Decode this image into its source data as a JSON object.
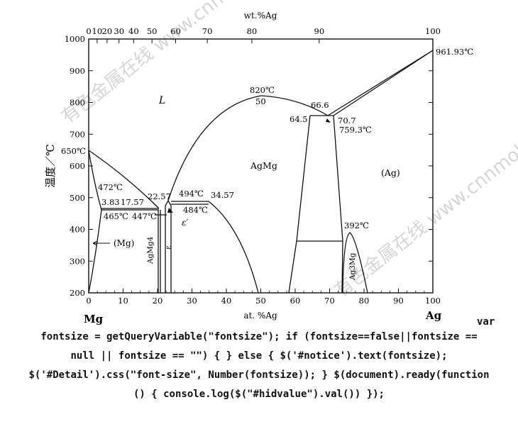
{
  "diagram": {
    "top_axis_title": "wt.%Ag",
    "bottom_axis_title": "at. %Ag",
    "y_axis_title": "温度／℃",
    "left_element": "Mg",
    "right_element": "Ag",
    "top_ticks": [
      "0",
      "10",
      "20",
      "30",
      "40",
      "50",
      "60",
      "70",
      "80",
      "90",
      "100"
    ],
    "bottom_ticks": [
      "0",
      "10",
      "20",
      "30",
      "40",
      "50",
      "60",
      "70",
      "80",
      "90",
      "100"
    ],
    "y_ticks": [
      "1000",
      "900",
      "800",
      "700",
      "600",
      "500",
      "400",
      "300",
      "200"
    ],
    "x_range": [
      0,
      100
    ],
    "y_range": [
      200,
      1000
    ],
    "phase_labels": {
      "liquid": "L",
      "agmg": "AgMg",
      "ag": "(Ag)",
      "mg": "(Mg)",
      "agmg4": "AgMg4",
      "epsilon": "ε",
      "epsilon_prime": "ε′",
      "ag3mg": "Ag3Mg"
    },
    "annotations": {
      "t961": "961.93℃",
      "t820": "820℃",
      "c50": "50",
      "c66_6": "66.6",
      "c64_5": "64.5",
      "c70_7": "70.7",
      "t759": "759.3℃",
      "t650": "650℃",
      "t472": "472℃",
      "c3_83": "3.83",
      "c17_57": "17.57",
      "c22_57": "22.57",
      "t494": "494℃",
      "c34_57": "34.57",
      "t484": "484℃",
      "t465": "465℃",
      "t447": "447℃",
      "t392": "392℃"
    },
    "watermark": "有色金属在线 www.cnnmol.com"
  },
  "code": {
    "var_keyword": "var",
    "lines": [
      "fontsize = getQueryVariable(\"fontsize\"); if (fontsize==false||fontsize ==",
      "null || fontsize == \"\") { } else { $('#notice').text(fontsize);",
      "$('#Detail').css(\"font-size\", Number(fontsize)); } $(document).ready(function",
      "() { console.log($(\"#hidvalue\").val()) });"
    ]
  }
}
